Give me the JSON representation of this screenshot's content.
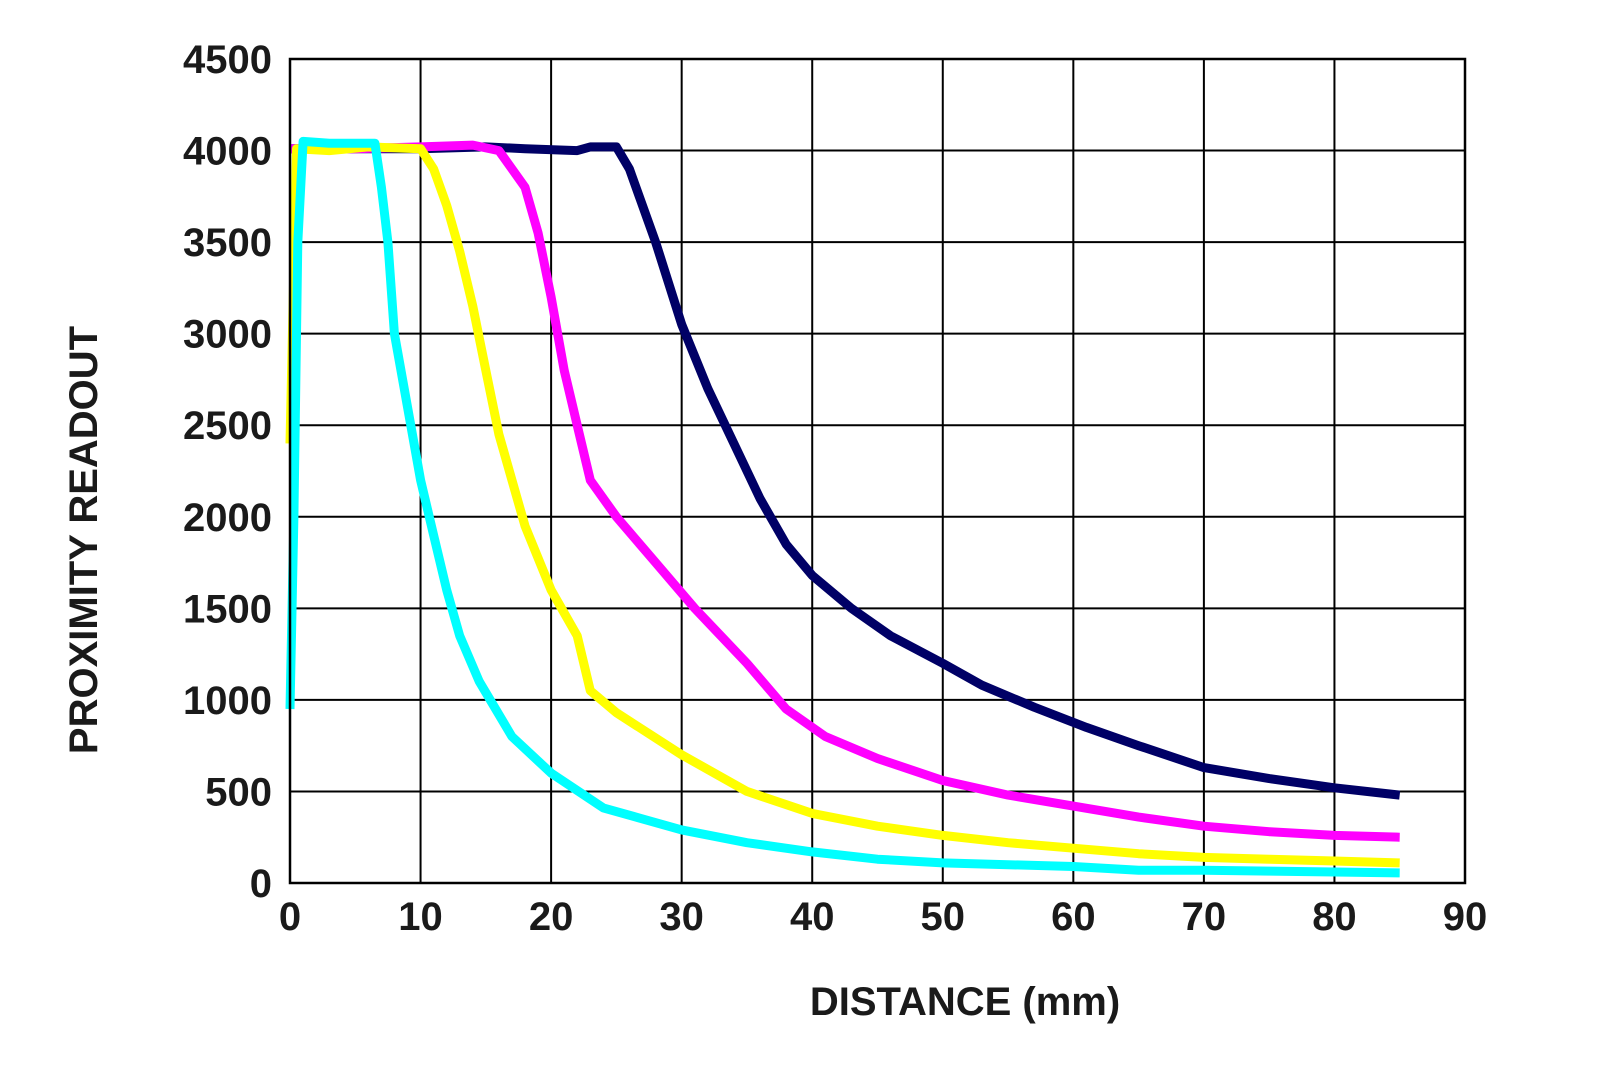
{
  "chart_data": {
    "type": "line",
    "title": "",
    "xlabel": "DISTANCE (mm)",
    "ylabel": "PROXIMITY READOUT",
    "xlim": [
      0,
      90
    ],
    "ylim": [
      0,
      4500
    ],
    "xticks": [
      0,
      10,
      20,
      30,
      40,
      50,
      60,
      70,
      80,
      90
    ],
    "yticks": [
      0,
      500,
      1000,
      1500,
      2000,
      2500,
      3000,
      3500,
      4000,
      4500
    ],
    "grid": true,
    "legend": "none",
    "series": [
      {
        "color": "#000066",
        "points": [
          [
            0,
            4010
          ],
          [
            5,
            4010
          ],
          [
            10,
            4010
          ],
          [
            15,
            4020
          ],
          [
            18,
            4010
          ],
          [
            22,
            4000
          ],
          [
            23,
            4020
          ],
          [
            25,
            4020
          ],
          [
            26,
            3900
          ],
          [
            28,
            3500
          ],
          [
            30,
            3050
          ],
          [
            32,
            2700
          ],
          [
            34,
            2400
          ],
          [
            36,
            2100
          ],
          [
            38,
            1850
          ],
          [
            40,
            1680
          ],
          [
            43,
            1500
          ],
          [
            46,
            1350
          ],
          [
            50,
            1200
          ],
          [
            53,
            1080
          ],
          [
            57,
            960
          ],
          [
            61,
            850
          ],
          [
            65,
            750
          ],
          [
            70,
            630
          ],
          [
            75,
            570
          ],
          [
            80,
            520
          ],
          [
            85,
            480
          ]
        ]
      },
      {
        "color": "#ff00ff",
        "points": [
          [
            0,
            4010
          ],
          [
            5,
            4010
          ],
          [
            10,
            4020
          ],
          [
            14,
            4030
          ],
          [
            16,
            4000
          ],
          [
            18,
            3800
          ],
          [
            19,
            3550
          ],
          [
            20,
            3200
          ],
          [
            21,
            2800
          ],
          [
            22,
            2500
          ],
          [
            23,
            2200
          ],
          [
            25,
            2000
          ],
          [
            28,
            1750
          ],
          [
            31,
            1500
          ],
          [
            35,
            1200
          ],
          [
            38,
            950
          ],
          [
            41,
            800
          ],
          [
            45,
            680
          ],
          [
            50,
            560
          ],
          [
            55,
            480
          ],
          [
            60,
            420
          ],
          [
            65,
            360
          ],
          [
            70,
            310
          ],
          [
            75,
            280
          ],
          [
            80,
            260
          ],
          [
            85,
            250
          ]
        ]
      },
      {
        "color": "#ffff00",
        "points": [
          [
            0,
            2400
          ],
          [
            0.5,
            4010
          ],
          [
            3,
            4000
          ],
          [
            6,
            4020
          ],
          [
            10,
            4010
          ],
          [
            11,
            3900
          ],
          [
            12,
            3700
          ],
          [
            13,
            3450
          ],
          [
            14,
            3150
          ],
          [
            15,
            2800
          ],
          [
            16,
            2450
          ],
          [
            18,
            1950
          ],
          [
            20,
            1600
          ],
          [
            22,
            1350
          ],
          [
            23,
            1050
          ],
          [
            25,
            930
          ],
          [
            30,
            700
          ],
          [
            35,
            500
          ],
          [
            40,
            380
          ],
          [
            45,
            310
          ],
          [
            50,
            260
          ],
          [
            55,
            220
          ],
          [
            60,
            190
          ],
          [
            65,
            160
          ],
          [
            70,
            140
          ],
          [
            75,
            130
          ],
          [
            80,
            120
          ],
          [
            85,
            110
          ]
        ]
      },
      {
        "color": "#00ffff",
        "points": [
          [
            0,
            950
          ],
          [
            0.3,
            2000
          ],
          [
            0.6,
            3500
          ],
          [
            1,
            4050
          ],
          [
            3,
            4040
          ],
          [
            6.5,
            4040
          ],
          [
            7,
            3800
          ],
          [
            7.5,
            3500
          ],
          [
            8,
            3000
          ],
          [
            9,
            2600
          ],
          [
            10,
            2200
          ],
          [
            11,
            1900
          ],
          [
            12,
            1600
          ],
          [
            13,
            1350
          ],
          [
            14.5,
            1100
          ],
          [
            17,
            800
          ],
          [
            20,
            600
          ],
          [
            24,
            410
          ],
          [
            27,
            350
          ],
          [
            30,
            290
          ],
          [
            35,
            220
          ],
          [
            40,
            170
          ],
          [
            45,
            130
          ],
          [
            50,
            110
          ],
          [
            60,
            90
          ],
          [
            65,
            70
          ],
          [
            70,
            70
          ],
          [
            75,
            65
          ],
          [
            80,
            60
          ],
          [
            85,
            55
          ]
        ]
      }
    ]
  }
}
